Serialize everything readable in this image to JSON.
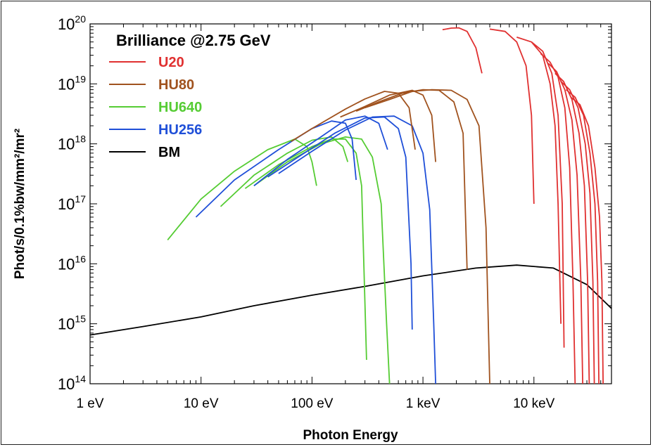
{
  "chart_data": {
    "type": "line",
    "title": "Brilliance @2.75 GeV",
    "xlabel": "Photon Energy",
    "ylabel": "Phot/s/0.1%bw/mm²/mr²",
    "xscale": "log",
    "yscale": "log",
    "xlim": [
      1,
      50000
    ],
    "ylim": [
      100000000000000.0,
      1e+20
    ],
    "grid": false,
    "legend_position": "top-left",
    "x_tick_labels": [
      {
        "value": 1,
        "label": "1 eV"
      },
      {
        "value": 10,
        "label": "10 eV"
      },
      {
        "value": 100,
        "label": "100 eV"
      },
      {
        "value": 1000,
        "label": "1 keV"
      },
      {
        "value": 10000,
        "label": "10 keV"
      }
    ],
    "y_tick_labels": [
      {
        "value": 100000000000000.0,
        "base": "10",
        "exp": "14"
      },
      {
        "value": 1000000000000000.0,
        "base": "10",
        "exp": "15"
      },
      {
        "value": 1e+16,
        "base": "10",
        "exp": "16"
      },
      {
        "value": 1e+17,
        "base": "10",
        "exp": "17"
      },
      {
        "value": 1e+18,
        "base": "10",
        "exp": "18"
      },
      {
        "value": 1e+19,
        "base": "10",
        "exp": "19"
      },
      {
        "value": 1e+20,
        "base": "10",
        "exp": "20"
      }
    ],
    "legend": [
      {
        "name": "U20",
        "color": "#e03030"
      },
      {
        "name": "HU80",
        "color": "#a0521e"
      },
      {
        "name": "HU640",
        "color": "#55cc33"
      },
      {
        "name": "HU256",
        "color": "#1f4fd8"
      },
      {
        "name": "BM",
        "color": "#000000"
      }
    ],
    "series": [
      {
        "name": "BM",
        "color": "#000000",
        "curves": [
          {
            "x": [
              1,
              3,
              10,
              30,
              100,
              300,
              1000,
              3000,
              7000,
              15000,
              30000,
              50000
            ],
            "y": [
              650000000000000.0,
              900000000000000.0,
              1300000000000000.0,
              2000000000000000.0,
              3000000000000000.0,
              4200000000000000.0,
              6300000000000000.0,
              8500000000000000.0,
              9500000000000000.0,
              8500000000000000.0,
              4500000000000000.0,
              1800000000000000.0
            ]
          }
        ]
      },
      {
        "name": "HU640",
        "color": "#55cc33",
        "curves": [
          {
            "x": [
              5,
              10,
              20,
              40,
              70,
              90,
              100,
              110
            ],
            "y": [
              2.5e+16,
              1.2e+17,
              3.5e+17,
              8e+17,
              1.2e+18,
              9e+17,
              5e+17,
              2e+17
            ]
          },
          {
            "x": [
              15,
              30,
              60,
              100,
              150,
              190,
              210
            ],
            "y": [
              9e+16,
              3e+17,
              7e+17,
              1.15e+18,
              1.3e+18,
              9e+17,
              5e+17
            ]
          },
          {
            "x": [
              25,
              50,
              100,
              150,
              200,
              250,
              280,
              310
            ],
            "y": [
              1.8e+17,
              4.5e+17,
              9e+17,
              1.2e+18,
              1.2e+18,
              7e+17,
              2e+17,
              250000000000000.0
            ]
          },
          {
            "x": [
              30,
              60,
              120,
              200,
              280,
              350,
              420,
              470,
              500
            ],
            "y": [
              2e+17,
              5e+17,
              1e+18,
              1.3e+18,
              1.2e+18,
              6e+17,
              1e+17,
              1000000000000000.0,
              100000000000000.0
            ]
          }
        ]
      },
      {
        "name": "HU256",
        "color": "#1f4fd8",
        "curves": [
          {
            "x": [
              9,
              20,
              50,
              100,
              150,
              200,
              230,
              250
            ],
            "y": [
              6e+16,
              2.5e+17,
              8e+17,
              1.8e+18,
              2.4e+18,
              2.2e+18,
              1.2e+18,
              2.5e+17
            ]
          },
          {
            "x": [
              30,
              60,
              120,
              200,
              300,
              400,
              480
            ],
            "y": [
              2e+17,
              5.5e+17,
              1.3e+18,
              2.5e+18,
              2.9e+18,
              2.2e+18,
              8e+17
            ]
          },
          {
            "x": [
              40,
              80,
              160,
              300,
              450,
              600,
              700,
              780,
              800
            ],
            "y": [
              2.8e+17,
              6.5e+17,
              1.5e+18,
              2.7e+18,
              2.8e+18,
              1.8e+18,
              6e+17,
              1e+16,
              800000000000000.0
            ]
          },
          {
            "x": [
              50,
              100,
              200,
              350,
              550,
              800,
              1000,
              1150,
              1250,
              1300
            ],
            "y": [
              3.2e+17,
              7.5e+17,
              1.7e+18,
              2.8e+18,
              2.9e+18,
              2e+18,
              7e+17,
              8e+16,
              1000000000000000.0,
              100000000000000.0
            ]
          }
        ]
      },
      {
        "name": "HU80",
        "color": "#a0521e",
        "curves": [
          {
            "x": [
              65,
              100,
              200,
              300,
              450,
              600,
              750,
              850
            ],
            "y": [
              1.1e+18,
              1.8e+18,
              3.8e+18,
              5.6e+18,
              7.5e+18,
              7e+18,
              4e+18,
              8e+17
            ]
          },
          {
            "x": [
              180,
              300,
              500,
              800,
              1000,
              1200,
              1300
            ],
            "y": [
              2.8e+18,
              4.2e+18,
              6.5e+18,
              7.8e+18,
              6.5e+18,
              3e+18,
              5e+17
            ]
          },
          {
            "x": [
              250,
              400,
              650,
              1000,
              1400,
              1900,
              2300,
              2500
            ],
            "y": [
              3.5e+18,
              5e+18,
              7e+18,
              8e+18,
              7.8e+18,
              5e+18,
              1.5e+18,
              8000000000000000.0
            ]
          },
          {
            "x": [
              300,
              500,
              800,
              1200,
              1800,
              2500,
              3200,
              3700,
              4000
            ],
            "y": [
              4e+18,
              5.5e+18,
              7.5e+18,
              8e+18,
              7.8e+18,
              5.5e+18,
              2e+18,
              4e+16,
              100000000000000.0
            ]
          }
        ]
      },
      {
        "name": "U20",
        "color": "#e03030",
        "curves": [
          {
            "x": [
              1500,
              1800,
              2100,
              2500,
              3000,
              3400
            ],
            "y": [
              8e+19,
              8.5e+19,
              8.6e+19,
              7.5e+19,
              4e+19,
              1.5e+19
            ]
          },
          {
            "x": [
              4000,
              5500,
              7000,
              8500,
              9500,
              10000
            ],
            "y": [
              8.2e+19,
              7.5e+19,
              5e+19,
              2e+19,
              3e+18,
              1e+17
            ]
          },
          {
            "x": [
              7000,
              9500,
              12000,
              14000,
              15500,
              16500,
              17500
            ],
            "y": [
              6e+19,
              5e+19,
              3e+19,
              1e+19,
              2e+18,
              1e+17,
              1000000000000000.0
            ]
          },
          {
            "x": [
              9500,
              12000,
              14500,
              16500,
              18000,
              18700
            ],
            "y": [
              5e+19,
              3.5e+19,
              1.5e+19,
              3e+18,
              1e+17,
              400000000000000.0
            ]
          },
          {
            "x": [
              11500,
              14000,
              16500,
              19000,
              21000,
              22500,
              23500
            ],
            "y": [
              3.2e+19,
              2.3e+19,
              1.3e+19,
              4e+18,
              4e+17,
              5000000000000000.0,
              100000000000000.0
            ]
          },
          {
            "x": [
              13500,
              16000,
              19000,
              22000,
              24500,
              26500,
              27500
            ],
            "y": [
              2.2e+19,
              1.6e+19,
              8e+18,
              2.5e+18,
              3e+17,
              5000000000000000.0,
              100000000000000.0
            ]
          },
          {
            "x": [
              15500,
              18500,
              22000,
              25500,
              28500,
              30500,
              31500
            ],
            "y": [
              1.5e+19,
              1.1e+19,
              5.5e+18,
              1.5e+18,
              2e+17,
              5000000000000000.0,
              100000000000000.0
            ]
          },
          {
            "x": [
              17500,
              21000,
              25000,
              29000,
              32000,
              34000,
              35000
            ],
            "y": [
              1.1e+19,
              8e+18,
              4e+18,
              1e+18,
              1.5e+17,
              5000000000000000.0,
              100000000000000.0
            ]
          },
          {
            "x": [
              19500,
              23500,
              28000,
              32000,
              35500,
              37500,
              38500
            ],
            "y": [
              8e+18,
              6e+18,
              3e+18,
              7e+17,
              1e+17,
              5000000000000000.0,
              100000000000000.0
            ]
          },
          {
            "x": [
              21500,
              26000,
              31000,
              35500,
              39000,
              41000,
              42000
            ],
            "y": [
              6e+18,
              4.5e+18,
              2e+18,
              4e+17,
              6e+16,
              5000000000000000.0,
              100000000000000.0
            ]
          }
        ]
      }
    ]
  }
}
